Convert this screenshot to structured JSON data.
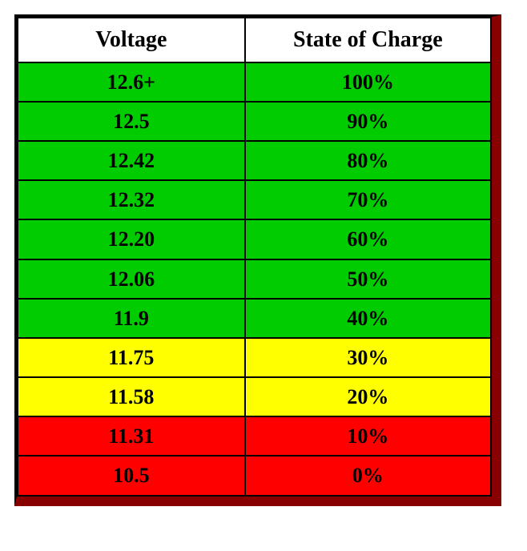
{
  "voltage_table": {
    "type": "table",
    "columns": [
      "Voltage",
      "State of Charge"
    ],
    "header_bg": "#ffffff",
    "header_fontsize": 28,
    "cell_fontsize": 26,
    "font_family": "Times New Roman",
    "border_color": "#000000",
    "shadow_color": "#880000",
    "col_widths_pct": [
      48,
      52
    ],
    "column_alignment": [
      "center",
      "center"
    ],
    "row_colors": {
      "green": "#00cc00",
      "yellow": "#ffff00",
      "red": "#ff0000"
    },
    "rows": [
      {
        "voltage": "12.6+",
        "charge": "100%",
        "bg": "#00cc00"
      },
      {
        "voltage": "12.5",
        "charge": "90%",
        "bg": "#00cc00"
      },
      {
        "voltage": "12.42",
        "charge": "80%",
        "bg": "#00cc00"
      },
      {
        "voltage": "12.32",
        "charge": "70%",
        "bg": "#00cc00"
      },
      {
        "voltage": "12.20",
        "charge": "60%",
        "bg": "#00cc00"
      },
      {
        "voltage": "12.06",
        "charge": "50%",
        "bg": "#00cc00"
      },
      {
        "voltage": "11.9",
        "charge": "40%",
        "bg": "#00cc00"
      },
      {
        "voltage": "11.75",
        "charge": "30%",
        "bg": "#ffff00"
      },
      {
        "voltage": "11.58",
        "charge": "20%",
        "bg": "#ffff00"
      },
      {
        "voltage": "11.31",
        "charge": "10%",
        "bg": "#ff0000"
      },
      {
        "voltage": "10.5",
        "charge": "0%",
        "bg": "#ff0000"
      }
    ]
  }
}
